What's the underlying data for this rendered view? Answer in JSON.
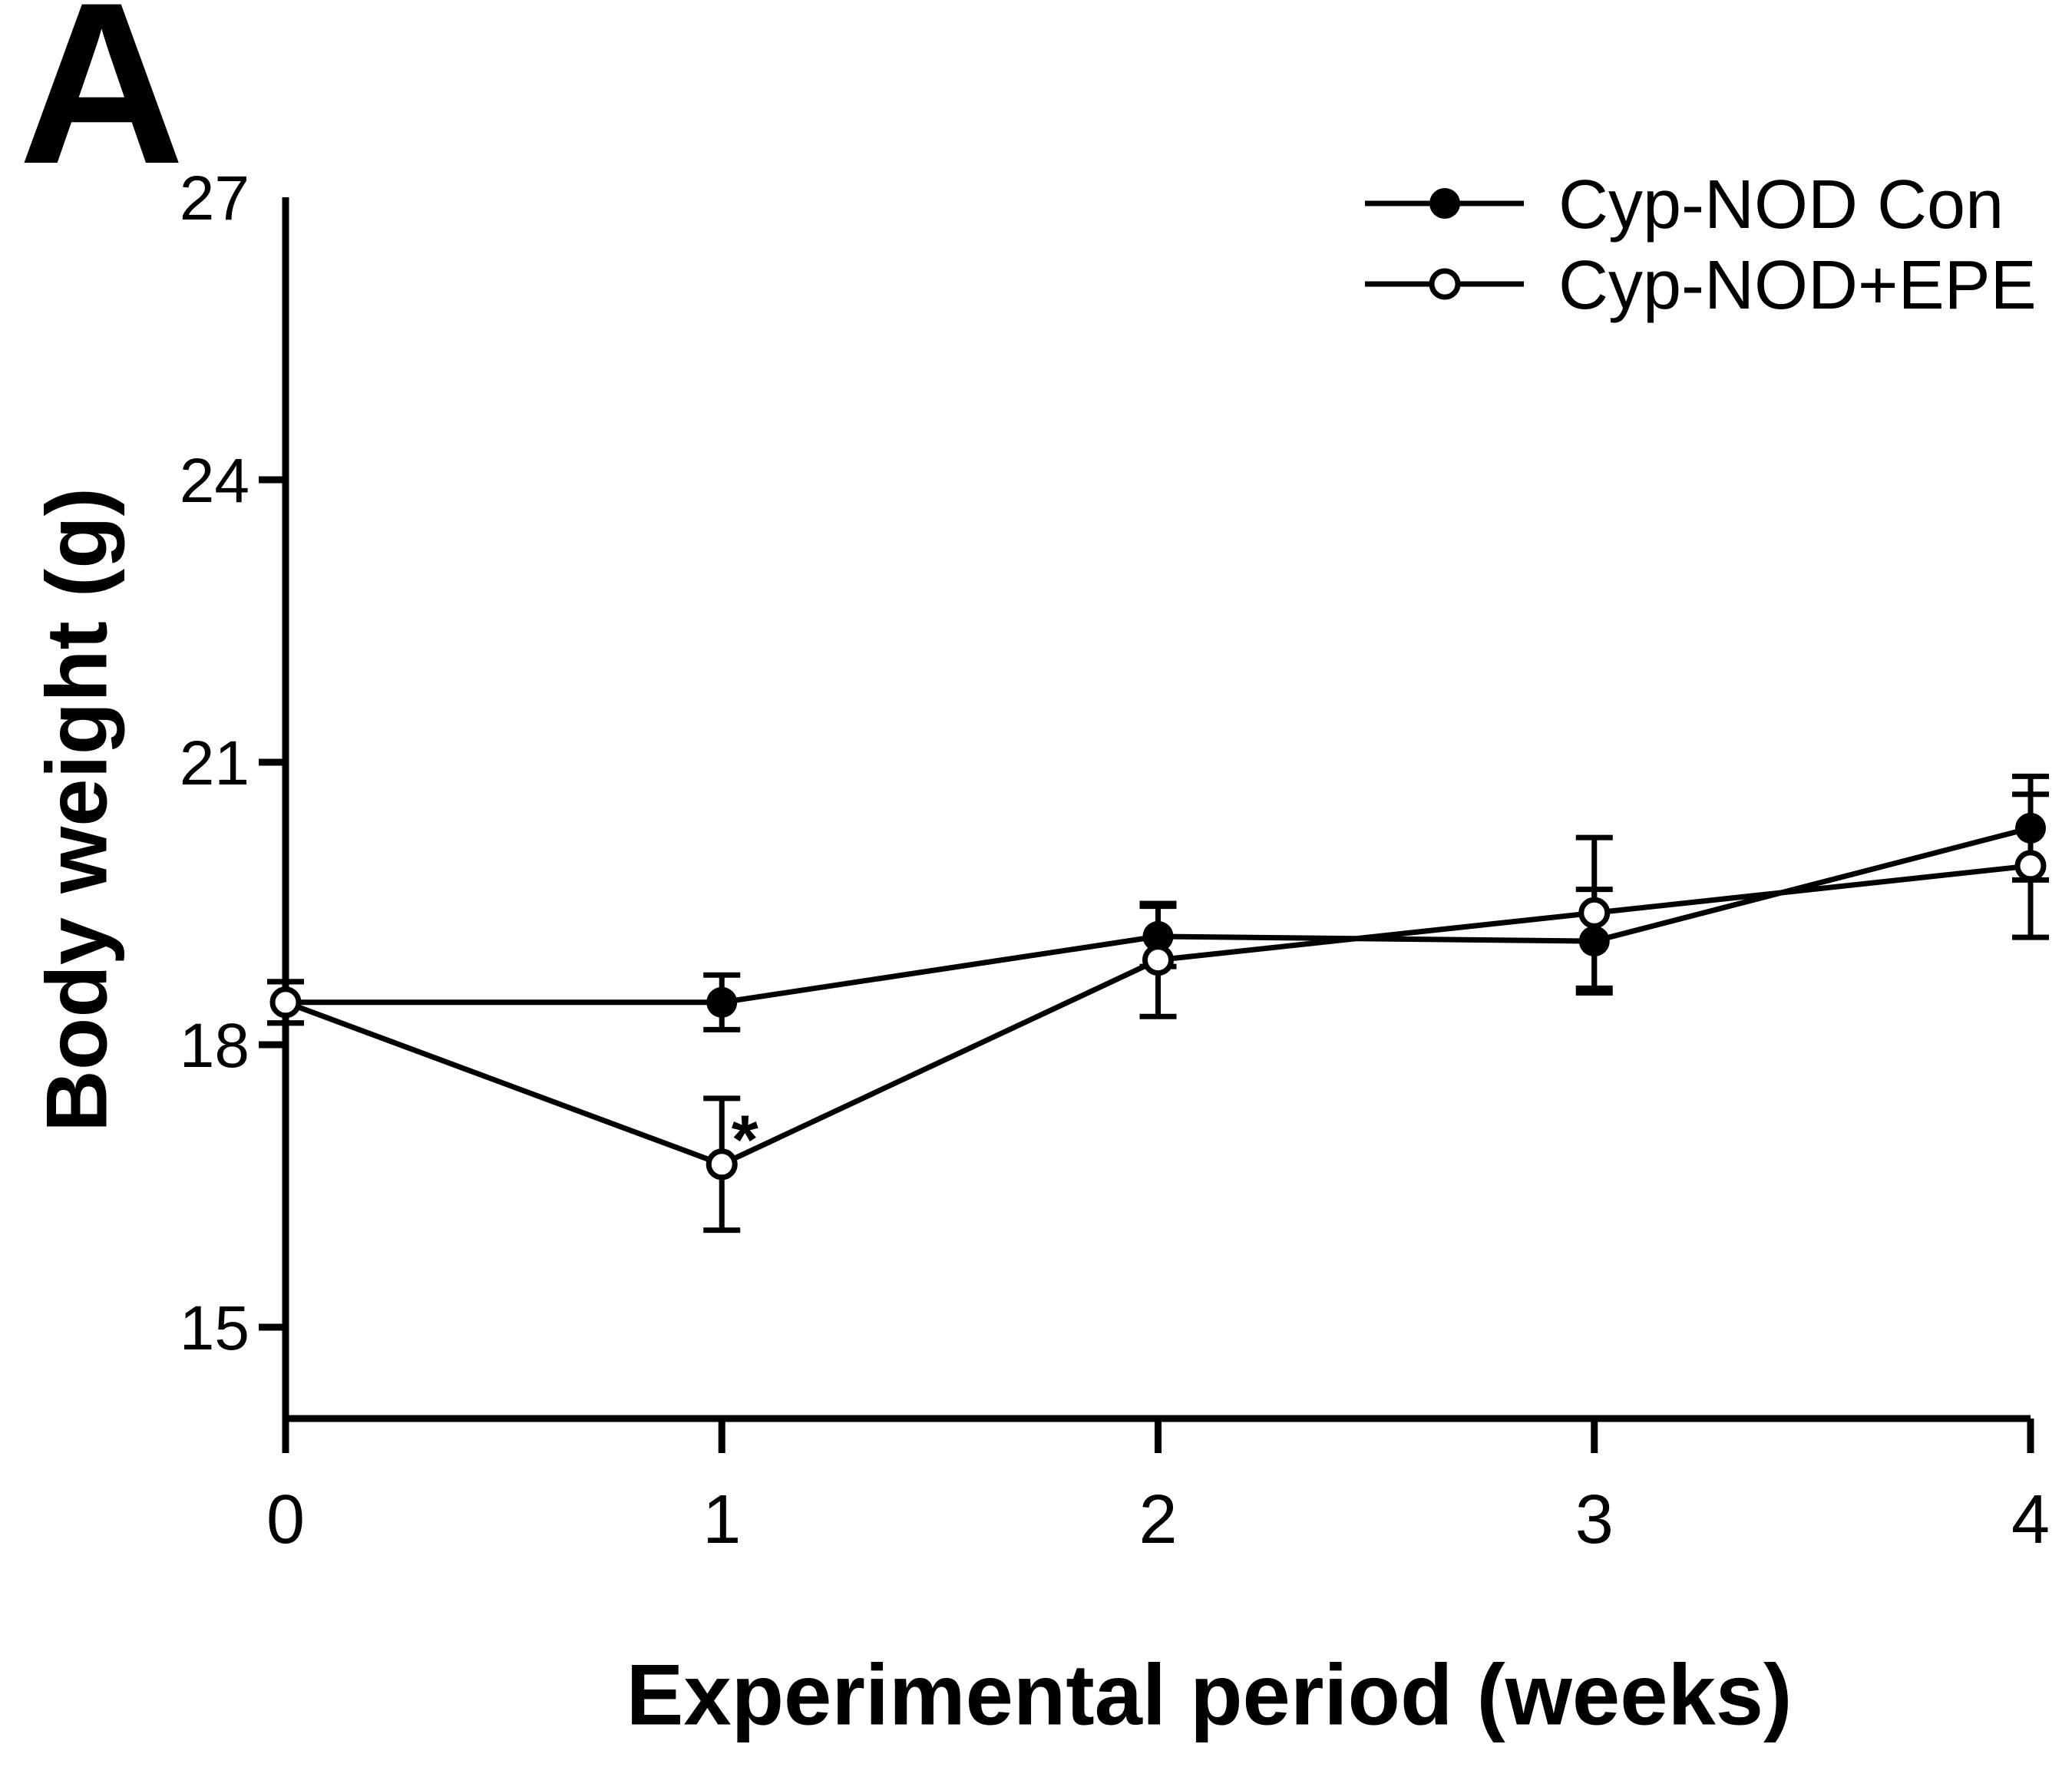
{
  "panel_label": "A",
  "chart_data": {
    "type": "line",
    "title": "",
    "xlabel": "Experimental period (weeks)",
    "ylabel": "Body weight (g)",
    "x": [
      0,
      1,
      2,
      3,
      4
    ],
    "x_tick_labels": [
      "0",
      "1",
      "2",
      "3",
      "4"
    ],
    "y_tick_labels": [
      "15",
      "18",
      "21",
      "24",
      "27"
    ],
    "y_tick_values": [
      15,
      18,
      21,
      24,
      27
    ],
    "y_tick_marks": [
      15,
      18,
      21,
      24
    ],
    "xlim": [
      0,
      4
    ],
    "ylim": [
      15,
      27
    ],
    "grid": false,
    "legend_position": "top-right",
    "colors": {
      "foreground": "#000000",
      "background": "#ffffff"
    },
    "series": [
      {
        "name": "Cyp-NOD Con",
        "marker": "filled-circle",
        "values": [
          18.45,
          18.45,
          19.15,
          19.1,
          20.3
        ],
        "sem": [
          0.22,
          0.29,
          0.32,
          0.55,
          0.55
        ]
      },
      {
        "name": "Cyp-NOD+EPE",
        "marker": "open-circle",
        "values": [
          18.45,
          16.73,
          18.9,
          19.4,
          19.9
        ],
        "sem": [
          0.22,
          0.7,
          0.6,
          0.8,
          0.76
        ]
      }
    ],
    "annotations": [
      {
        "text": "*",
        "series": "Cyp-NOD+EPE",
        "week": 1,
        "value": 17.15,
        "dx": 30
      }
    ]
  }
}
